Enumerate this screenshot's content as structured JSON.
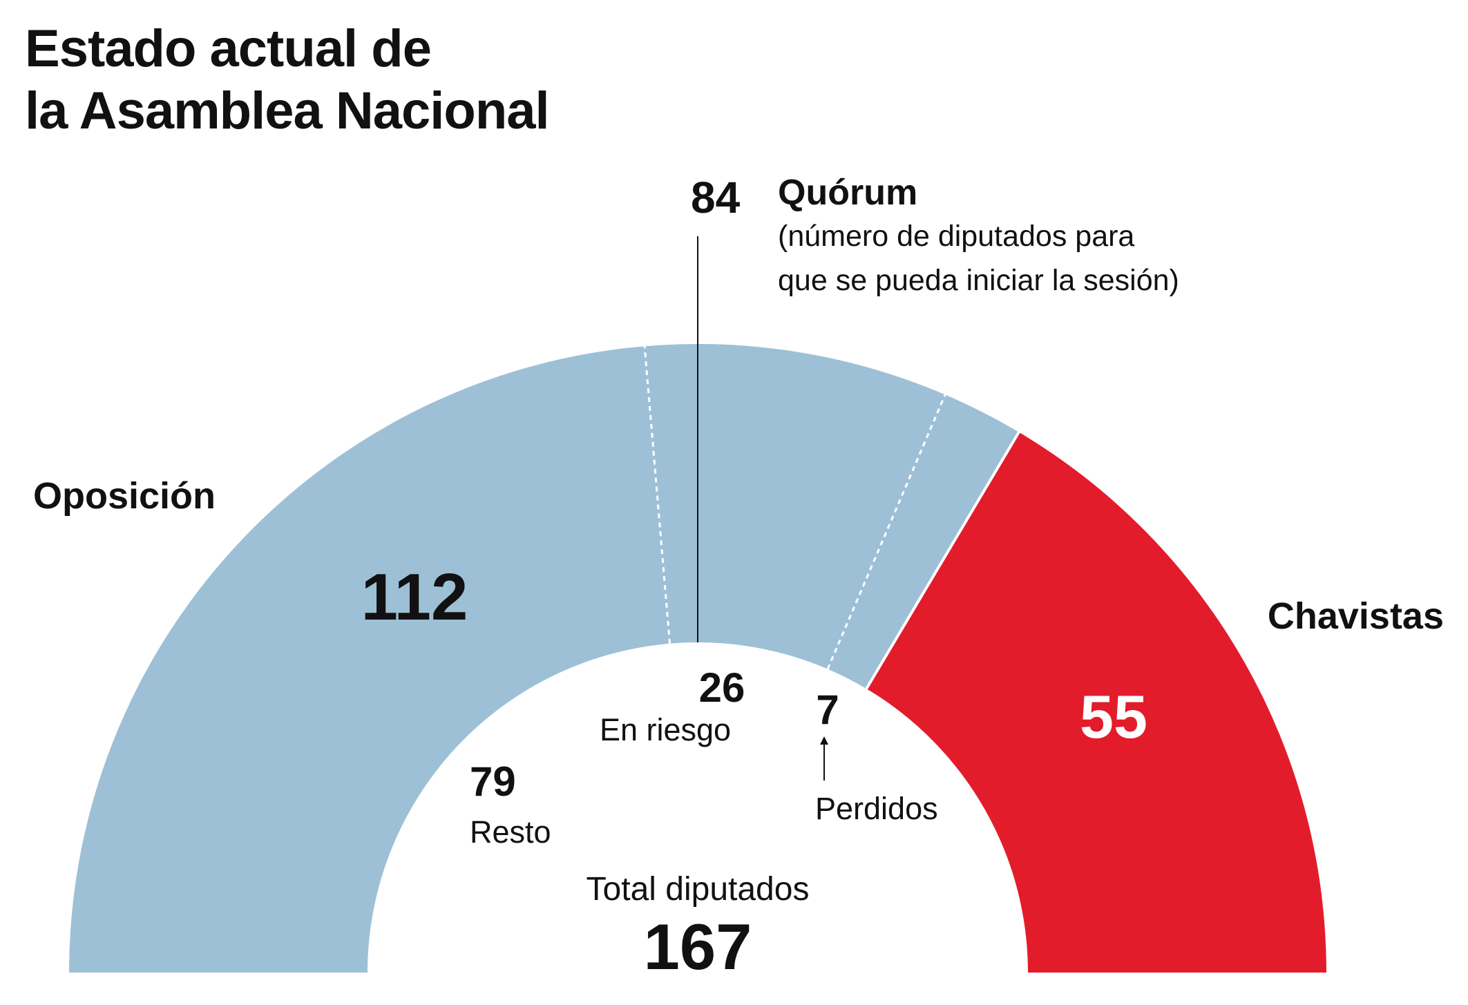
{
  "title": {
    "line1": "Estado actual de",
    "line2": "la Asamblea Nacional"
  },
  "colors": {
    "oposicion": "#9dc0d6",
    "chavistas": "#e31c2b",
    "text": "#111111",
    "white": "#ffffff"
  },
  "chart_data": {
    "type": "pie",
    "subtype": "half-donut parliament",
    "total": 167,
    "total_label": "Total diputados",
    "segments": [
      {
        "name": "Oposición",
        "value": 112,
        "color": "#9dc0d6",
        "subsegments": [
          {
            "label": "Resto",
            "value": 79
          },
          {
            "label": "En riesgo",
            "value": 26
          },
          {
            "label": "Perdidos",
            "value": 7
          }
        ]
      },
      {
        "name": "Chavistas",
        "value": 55,
        "color": "#e31c2b"
      }
    ],
    "quorum": {
      "value": 84,
      "label": "Quórum",
      "note_line1": "(número de diputados para",
      "note_line2": "que se pueda iniciar la sesión)"
    }
  },
  "labels": {
    "oposicion": "Oposición",
    "oposicion_value": "112",
    "chavistas": "Chavistas",
    "chavistas_value": "55",
    "resto_value": "79",
    "resto_label": "Resto",
    "riesgo_value": "26",
    "riesgo_label": "En riesgo",
    "perdidos_value": "7",
    "perdidos_label": "Perdidos",
    "quorum_value": "84",
    "total_label": "Total diputados",
    "total_value": "167"
  }
}
